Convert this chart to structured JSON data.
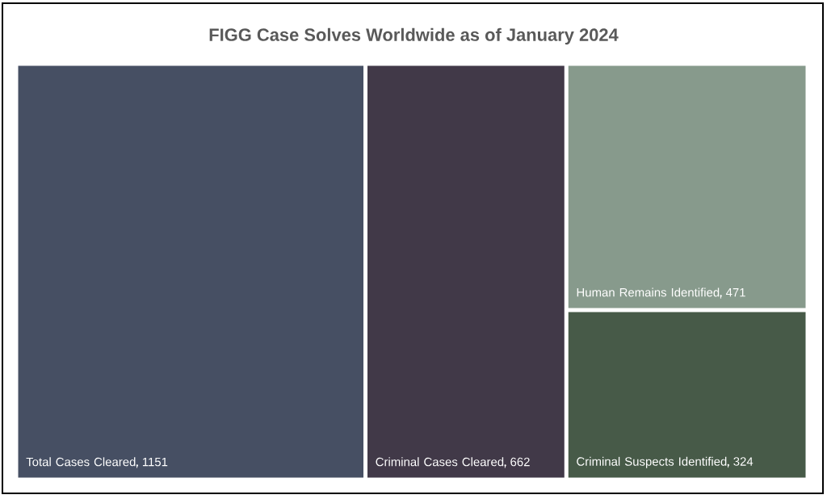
{
  "chart_data": {
    "type": "other",
    "title": "FIGG Case Solves Worldwide as of January 2024",
    "categories": [
      "Total Cases Cleared",
      "Criminal Cases Cleared",
      "Human Remains Identified",
      "Criminal Suspects Identified"
    ],
    "values": [
      1151,
      662,
      471,
      324
    ],
    "colors": [
      "#464f63",
      "#413948",
      "#879a8c",
      "#475a48"
    ],
    "data_labels": true
  }
}
